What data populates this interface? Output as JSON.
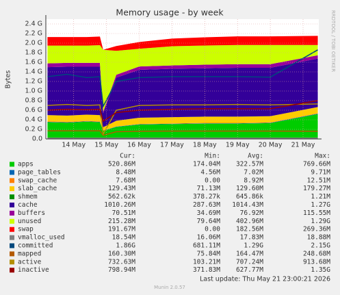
{
  "chart_data": {
    "type": "area",
    "title": "Memory usage - by week",
    "ylabel": "Bytes",
    "side_text": "RRDTOOL / TOBI OETIKER",
    "x": [
      13.2,
      13.8,
      14.4,
      14.8,
      14.9,
      15.3,
      16,
      17,
      18,
      19,
      20,
      21.45
    ],
    "xlim": [
      13.15,
      21.48
    ],
    "xticks": [
      {
        "value": 14,
        "label": "14 May"
      },
      {
        "value": 15,
        "label": "15 May"
      },
      {
        "value": 16,
        "label": "16 May"
      },
      {
        "value": 17,
        "label": "17 May"
      },
      {
        "value": 18,
        "label": "18 May"
      },
      {
        "value": 19,
        "label": "19 May"
      },
      {
        "value": 20,
        "label": "20 May"
      },
      {
        "value": 21,
        "label": "21 May"
      }
    ],
    "ylim": [
      0,
      2.5
    ],
    "yticks": [
      {
        "value": 0,
        "label": "0.0"
      },
      {
        "value": 0.2,
        "label": "0.2 G"
      },
      {
        "value": 0.4,
        "label": "0.4 G"
      },
      {
        "value": 0.6,
        "label": "0.6 G"
      },
      {
        "value": 0.8,
        "label": "0.8 G"
      },
      {
        "value": 1.0,
        "label": "1.0 G"
      },
      {
        "value": 1.2,
        "label": "1.2 G"
      },
      {
        "value": 1.4,
        "label": "1.4 G"
      },
      {
        "value": 1.6,
        "label": "1.6 G"
      },
      {
        "value": 1.8,
        "label": "1.8 G"
      },
      {
        "value": 2.0,
        "label": "2.0 G"
      },
      {
        "value": 2.2,
        "label": "2.2 G"
      },
      {
        "value": 2.4,
        "label": "2.4 G"
      }
    ],
    "grid": true,
    "stats_headers": [
      "Cur:",
      "Min:",
      "Avg:",
      "Max:"
    ],
    "series": [
      {
        "name": "apps",
        "color": "#00cc00",
        "stack": true,
        "values": [
          0.35,
          0.34,
          0.36,
          0.35,
          0.17,
          0.25,
          0.3,
          0.31,
          0.32,
          0.32,
          0.33,
          0.52
        ],
        "stats": [
          "520.86M",
          "174.04M",
          "322.57M",
          "769.66M"
        ]
      },
      {
        "name": "page_tables",
        "color": "#0066b3",
        "stack": true,
        "values": [
          0.008,
          0.008,
          0.008,
          0.008,
          0.005,
          0.007,
          0.007,
          0.007,
          0.007,
          0.007,
          0.007,
          0.008
        ],
        "stats": [
          "8.48M",
          "4.56M",
          "7.02M",
          "9.71M"
        ]
      },
      {
        "name": "swap_cache",
        "color": "#ff8000",
        "stack": true,
        "values": [
          0.009,
          0.009,
          0.009,
          0.009,
          0,
          0.002,
          0.005,
          0.007,
          0.008,
          0.008,
          0.008,
          0.008
        ],
        "stats": [
          "7.68M",
          "0.00",
          "8.92M",
          "12.51M"
        ]
      },
      {
        "name": "slab_cache",
        "color": "#ffcc00",
        "stack": true,
        "values": [
          0.13,
          0.13,
          0.13,
          0.13,
          0.07,
          0.12,
          0.13,
          0.13,
          0.13,
          0.13,
          0.13,
          0.13
        ],
        "stats": [
          "129.43M",
          "71.13M",
          "129.60M",
          "179.27M"
        ]
      },
      {
        "name": "shmem",
        "color": "#008f00",
        "stack": true,
        "values": [
          0.0006,
          0.0006,
          0.0006,
          0.0006,
          0.0004,
          0.0006,
          0.0006,
          0.0006,
          0.0006,
          0.0006,
          0.0006,
          0.0006
        ],
        "stats": [
          "562.62k",
          "378.27k",
          "645.86k",
          "1.21M"
        ]
      },
      {
        "name": "cache",
        "color": "#330099",
        "stack": true,
        "values": [
          1.0,
          1.02,
          1.0,
          1.01,
          0.29,
          0.9,
          1.0,
          1.01,
          1.01,
          1.02,
          1.01,
          1.01
        ],
        "stats": [
          "1010.26M",
          "287.63M",
          "1014.43M",
          "1.27G"
        ]
      },
      {
        "name": "buffers",
        "color": "#990099",
        "stack": true,
        "values": [
          0.08,
          0.08,
          0.08,
          0.08,
          0.035,
          0.06,
          0.07,
          0.07,
          0.075,
          0.075,
          0.075,
          0.07
        ],
        "stats": [
          "70.51M",
          "34.69M",
          "76.92M",
          "115.55M"
        ]
      },
      {
        "name": "unused",
        "color": "#ccff00",
        "stack": true,
        "values": [
          0.37,
          0.36,
          0.36,
          0.37,
          1.29,
          0.5,
          0.37,
          0.4,
          0.4,
          0.4,
          0.4,
          0.215
        ],
        "stats": [
          "215.28M",
          "79.64M",
          "402.96M",
          "1.29G"
        ]
      },
      {
        "name": "swap",
        "color": "#ff0000",
        "stack": true,
        "values": [
          0.18,
          0.18,
          0.18,
          0.18,
          0,
          0.1,
          0.14,
          0.16,
          0.17,
          0.18,
          0.18,
          0.19
        ],
        "stats": [
          "191.67M",
          "0.00",
          "182.56M",
          "269.36M"
        ]
      },
      {
        "name": "vmalloc_used",
        "color": "#808080",
        "values": [
          0.018,
          0.018,
          0.018,
          0.018,
          0.016,
          0.017,
          0.018,
          0.018,
          0.018,
          0.018,
          0.018,
          0.0185
        ],
        "stats": [
          "18.54M",
          "16.06M",
          "17.83M",
          "18.88M"
        ]
      },
      {
        "name": "committed",
        "color": "#00487d",
        "values": [
          1.3,
          1.35,
          1.28,
          1.3,
          0.68,
          1.2,
          1.28,
          1.3,
          1.3,
          1.3,
          1.29,
          1.86
        ],
        "stats": [
          "1.86G",
          "681.11M",
          "1.29G",
          "2.15G"
        ]
      },
      {
        "name": "mapped",
        "color": "#b35a00",
        "values": [
          0.17,
          0.17,
          0.17,
          0.17,
          0.076,
          0.15,
          0.16,
          0.165,
          0.165,
          0.165,
          0.165,
          0.16
        ],
        "stats": [
          "160.30M",
          "75.84M",
          "164.47M",
          "248.68M"
        ]
      },
      {
        "name": "active",
        "color": "#b38f00",
        "values": [
          0.7,
          0.72,
          0.7,
          0.71,
          0.1,
          0.6,
          0.7,
          0.71,
          0.71,
          0.72,
          0.71,
          0.73
        ],
        "stats": [
          "732.63M",
          "103.21M",
          "707.24M",
          "913.68M"
        ]
      },
      {
        "name": "inactive",
        "color": "#990000",
        "values": [
          0.6,
          0.62,
          0.61,
          0.62,
          0.37,
          0.55,
          0.6,
          0.62,
          0.63,
          0.63,
          0.63,
          0.8
        ],
        "stats": [
          "798.94M",
          "371.83M",
          "627.77M",
          "1.35G"
        ]
      }
    ],
    "footer": "Last update: Thu May 21 23:00:21 2026",
    "version": "Munin 2.0.57"
  }
}
